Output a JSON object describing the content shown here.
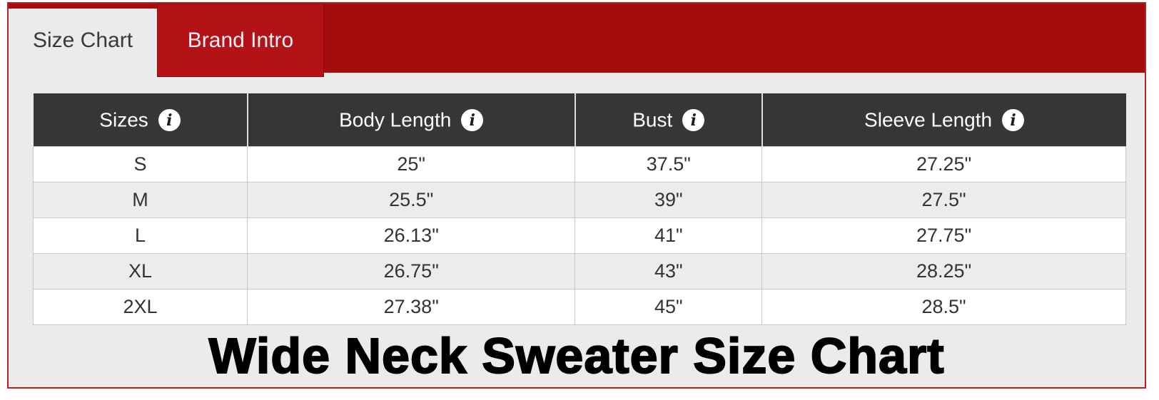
{
  "tabs": [
    {
      "label": "Size Chart",
      "active": true
    },
    {
      "label": "Brand Intro",
      "active": false
    }
  ],
  "table": {
    "headers": [
      {
        "label": "Sizes"
      },
      {
        "label": "Body Length"
      },
      {
        "label": "Bust"
      },
      {
        "label": "Sleeve Length"
      }
    ],
    "rows": [
      [
        "S",
        "25\"",
        "37.5\"",
        "27.25\""
      ],
      [
        "M",
        "25.5\"",
        "39\"",
        "27.5\""
      ],
      [
        "L",
        "26.13\"",
        "41\"",
        "27.75\""
      ],
      [
        "XL",
        "26.75\"",
        "43\"",
        "28.25\""
      ],
      [
        "2XL",
        "27.38\"",
        "45\"",
        "28.5\""
      ]
    ]
  },
  "title": "Wide Neck Sweater Size Chart",
  "icons": {
    "info": "i"
  },
  "colors": {
    "bar_red": "#a30d0e",
    "brand_tab_red": "#b31217",
    "border_red": "#ab2524",
    "header_bg": "#363636",
    "row_alt": "#ececec",
    "body_bg": "#ebebeb",
    "text_dark": "#333333"
  }
}
